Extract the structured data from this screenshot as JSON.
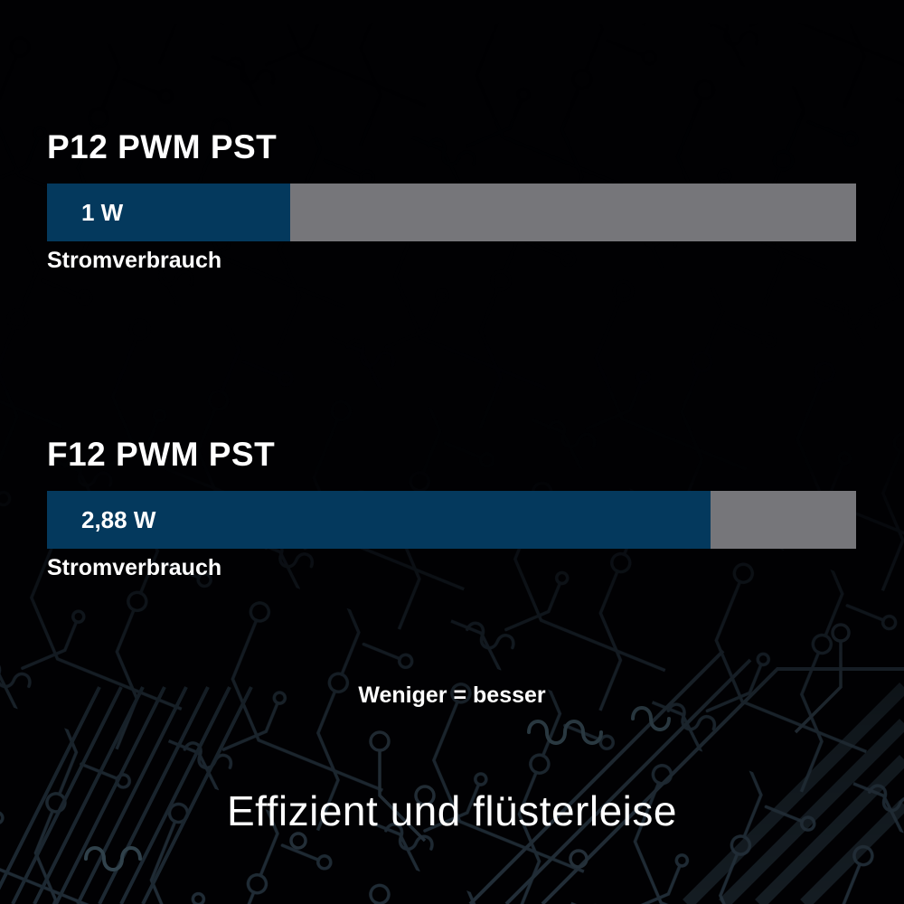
{
  "page": {
    "headline": "Effizient und flüsterleise",
    "note": "Weniger = besser"
  },
  "chart_data": {
    "type": "bar",
    "orientation": "horizontal",
    "title": "Effizient und flüsterleise",
    "annotation": "Weniger = besser",
    "lower_is_better": true,
    "metric_label": "Stromverbrauch",
    "unit": "W",
    "groups": [
      {
        "name": "P12 PWM PST",
        "value": 1,
        "value_label": "1 W",
        "metric": "Stromverbrauch",
        "bar_pct": 30
      },
      {
        "name": "F12 PWM PST",
        "value": 2.88,
        "value_label": "2,88 W",
        "metric": "Stromverbrauch",
        "bar_pct": 82
      }
    ],
    "colors": {
      "bar_fill": "#04395d",
      "bar_track": "#76767a",
      "background": "#010103",
      "text": "#ffffff",
      "circuit_trace": "#202c36"
    }
  }
}
